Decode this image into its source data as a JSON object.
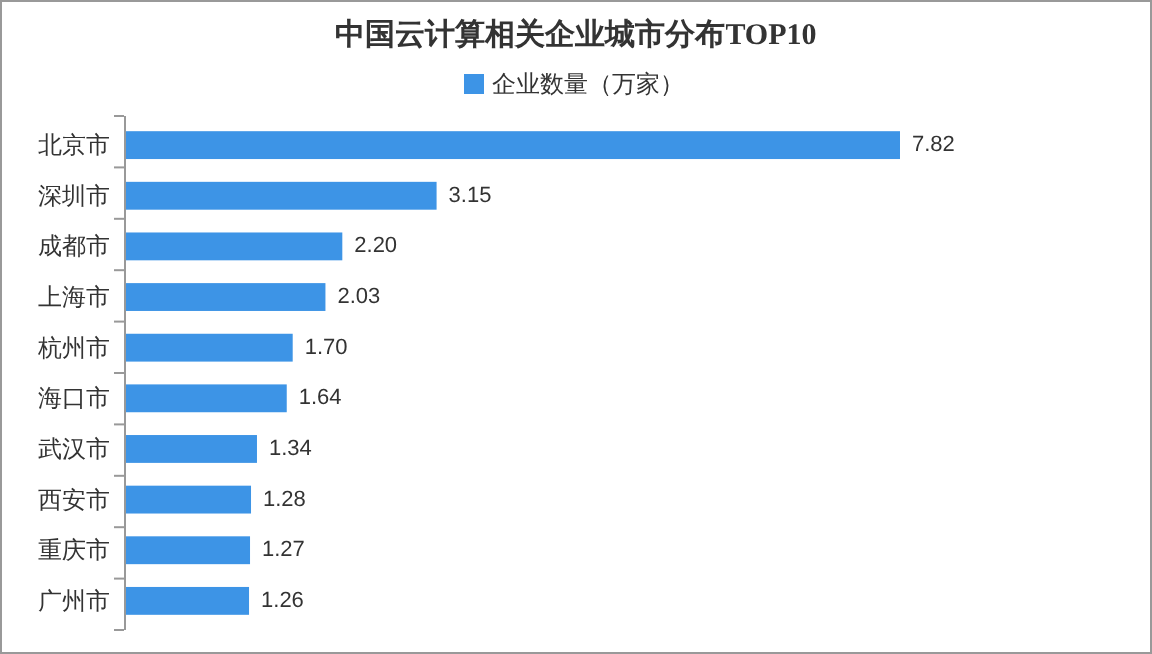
{
  "chart_data": {
    "type": "bar",
    "orientation": "horizontal",
    "title": "中国云计算相关企业城市分布TOP10",
    "categories": [
      "北京市",
      "深圳市",
      "成都市",
      "上海市",
      "杭州市",
      "海口市",
      "武汉市",
      "西安市",
      "重庆市",
      "广州市"
    ],
    "series": [
      {
        "name": "企业数量（万家）",
        "color": "#3d94e6",
        "values": [
          7.82,
          3.15,
          2.2,
          2.03,
          1.7,
          1.64,
          1.34,
          1.28,
          1.27,
          1.26
        ],
        "value_labels": [
          "7.82",
          "3.15",
          "2.20",
          "2.03",
          "1.70",
          "1.64",
          "1.34",
          "1.28",
          "1.27",
          "1.26"
        ]
      }
    ],
    "legend": "top"
  }
}
